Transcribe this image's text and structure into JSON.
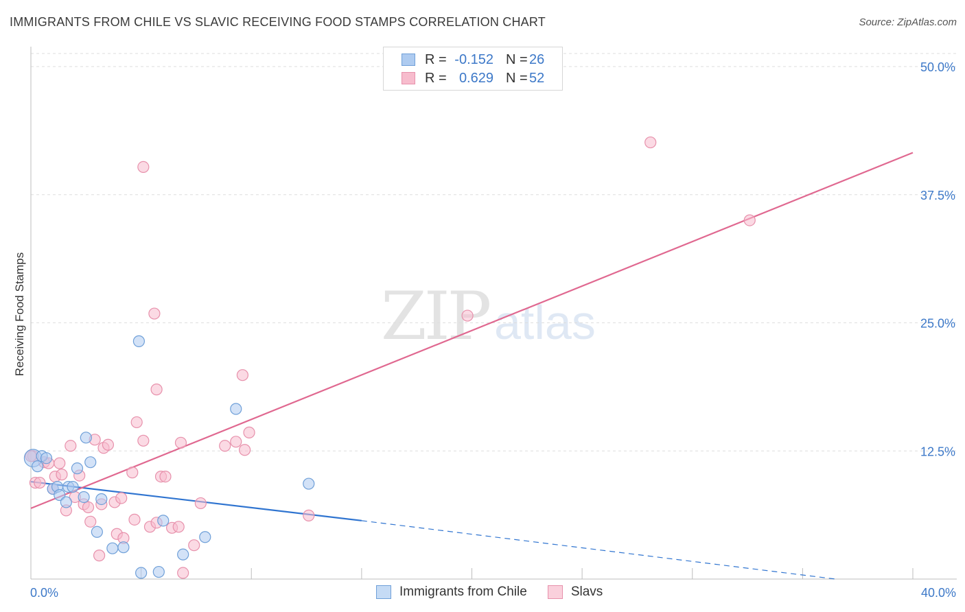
{
  "header": {
    "title": "IMMIGRANTS FROM CHILE VS SLAVIC RECEIVING FOOD STAMPS CORRELATION CHART",
    "source": "Source: ZipAtlas.com"
  },
  "legend": {
    "r_label": "R =",
    "n_label": "N =",
    "series": [
      {
        "name": "Immigrants from Chile",
        "r": "-0.152",
        "n": "26"
      },
      {
        "name": "Slavs",
        "r": "0.629",
        "n": "52"
      }
    ]
  },
  "watermark": {
    "zip": "ZIP",
    "atlas": "atlas"
  },
  "colors": {
    "blue_fill": "#aecbf0",
    "blue_stroke": "#6e9fd8",
    "blue_line": "#2f74d0",
    "pink_fill": "#f7bccd",
    "pink_stroke": "#e790ab",
    "pink_line": "#e06890",
    "axis_text": "#3c78c8",
    "grid": "#dedede"
  },
  "chart_data": {
    "type": "scatter",
    "title": "IMMIGRANTS FROM CHILE VS SLAVIC RECEIVING FOOD STAMPS CORRELATION CHART",
    "xlabel": "",
    "ylabel": "Receiving Food Stamps",
    "xlim": [
      0,
      40
    ],
    "ylim": [
      0,
      50
    ],
    "x_tick_labels": [
      "0.0%",
      "40.0%"
    ],
    "y_ticks": [
      12.5,
      25.0,
      37.5,
      50.0
    ],
    "y_tick_labels": [
      "12.5%",
      "25.0%",
      "37.5%",
      "50.0%"
    ],
    "grid": true,
    "series": [
      {
        "name": "Immigrants from Chile",
        "color": "blue",
        "trend": {
          "x": [
            0,
            15
          ],
          "y": [
            9.5,
            5.7
          ],
          "dashed_to": [
            36.5,
            0.0
          ]
        },
        "points": [
          [
            0.1,
            11.8,
            1.6
          ],
          [
            0.3,
            11.0,
            1
          ],
          [
            0.5,
            12.0,
            1
          ],
          [
            0.7,
            11.8,
            1
          ],
          [
            1.0,
            8.8,
            1
          ],
          [
            1.2,
            9.0,
            1
          ],
          [
            1.3,
            8.2,
            1
          ],
          [
            1.6,
            7.5,
            1
          ],
          [
            1.7,
            9.0,
            1
          ],
          [
            1.9,
            9.0,
            1
          ],
          [
            2.1,
            10.8,
            1
          ],
          [
            2.4,
            8.0,
            1
          ],
          [
            2.5,
            13.8,
            1
          ],
          [
            2.7,
            11.4,
            1
          ],
          [
            3.0,
            4.6,
            1
          ],
          [
            3.2,
            7.8,
            1
          ],
          [
            3.7,
            3.0,
            1
          ],
          [
            4.2,
            3.1,
            1
          ],
          [
            4.9,
            23.2,
            1
          ],
          [
            5.0,
            0.6,
            1
          ],
          [
            5.8,
            0.7,
            1
          ],
          [
            6.0,
            5.7,
            1
          ],
          [
            6.9,
            2.4,
            1
          ],
          [
            7.9,
            4.1,
            1
          ],
          [
            9.3,
            16.6,
            1
          ],
          [
            12.6,
            9.3,
            1
          ]
        ]
      },
      {
        "name": "Slavs",
        "color": "pink",
        "trend": {
          "x": [
            0,
            40
          ],
          "y": [
            6.9,
            41.6
          ]
        },
        "points": [
          [
            0.1,
            12.0,
            1
          ],
          [
            0.2,
            9.4,
            1
          ],
          [
            0.4,
            9.4,
            1
          ],
          [
            0.6,
            11.4,
            1
          ],
          [
            0.8,
            11.3,
            1
          ],
          [
            1.0,
            8.8,
            1
          ],
          [
            1.1,
            10.0,
            1
          ],
          [
            1.3,
            11.3,
            1
          ],
          [
            1.4,
            10.2,
            1
          ],
          [
            1.6,
            6.7,
            1
          ],
          [
            1.8,
            13.0,
            1
          ],
          [
            2.0,
            8.0,
            1
          ],
          [
            2.2,
            10.1,
            1
          ],
          [
            2.4,
            7.3,
            1
          ],
          [
            2.6,
            7.0,
            1
          ],
          [
            2.7,
            5.6,
            1
          ],
          [
            2.9,
            13.6,
            1
          ],
          [
            3.1,
            2.3,
            1
          ],
          [
            3.2,
            7.3,
            1
          ],
          [
            3.3,
            12.8,
            1
          ],
          [
            3.5,
            13.1,
            1
          ],
          [
            3.8,
            7.5,
            1
          ],
          [
            3.9,
            4.4,
            1
          ],
          [
            4.1,
            7.9,
            1
          ],
          [
            4.2,
            4.0,
            1
          ],
          [
            4.6,
            10.4,
            1
          ],
          [
            4.7,
            5.8,
            1
          ],
          [
            4.8,
            15.3,
            1
          ],
          [
            5.1,
            40.2,
            1
          ],
          [
            5.1,
            13.5,
            1
          ],
          [
            5.4,
            5.1,
            1
          ],
          [
            5.7,
            5.5,
            1
          ],
          [
            5.6,
            25.9,
            1
          ],
          [
            5.7,
            18.5,
            1
          ],
          [
            5.9,
            10.0,
            1
          ],
          [
            6.1,
            10.0,
            1
          ],
          [
            6.4,
            5.0,
            1
          ],
          [
            6.7,
            5.1,
            1
          ],
          [
            6.8,
            13.3,
            1
          ],
          [
            6.9,
            0.6,
            1
          ],
          [
            7.4,
            3.3,
            1
          ],
          [
            7.7,
            7.4,
            1
          ],
          [
            8.8,
            13.0,
            1
          ],
          [
            9.3,
            13.4,
            1
          ],
          [
            9.6,
            19.9,
            1
          ],
          [
            9.7,
            12.6,
            1
          ],
          [
            9.9,
            14.3,
            1
          ],
          [
            12.6,
            6.2,
            1
          ],
          [
            19.8,
            25.7,
            1
          ],
          [
            28.1,
            42.6,
            1
          ],
          [
            32.6,
            35.0,
            1
          ],
          [
            0.0,
            12.0,
            1
          ]
        ]
      }
    ]
  }
}
